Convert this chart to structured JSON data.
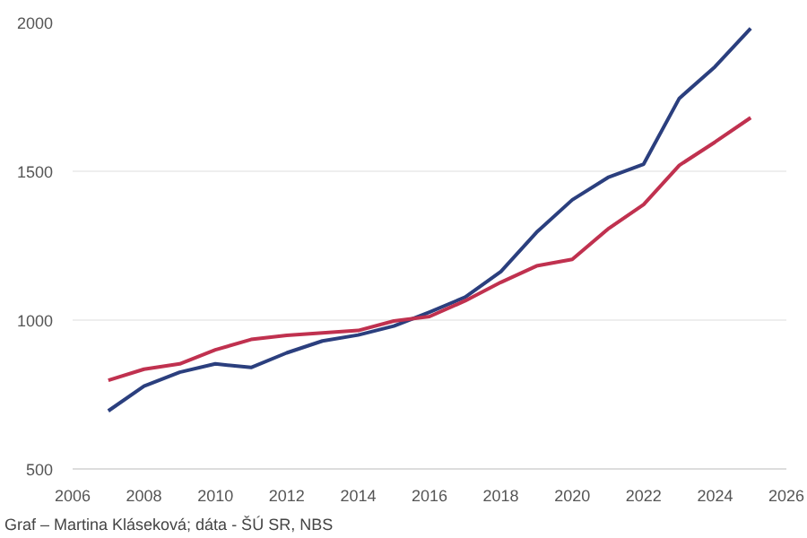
{
  "chart_data": {
    "type": "line",
    "x": [
      2007,
      2008,
      2009,
      2010,
      2011,
      2012,
      2013,
      2014,
      2015,
      2016,
      2017,
      2018,
      2019,
      2020,
      2021,
      2022,
      2023,
      2024,
      2025
    ],
    "series": [
      {
        "color": "#2b3f7e",
        "values": [
          695,
          778,
          825,
          853,
          841,
          890,
          930,
          950,
          980,
          1027,
          1077,
          1163,
          1295,
          1404,
          1479,
          1524,
          1745,
          1851,
          1980
        ]
      },
      {
        "color": "#c0314f",
        "values": [
          798,
          835,
          853,
          900,
          935,
          949,
          957,
          965,
          997,
          1012,
          1065,
          1127,
          1182,
          1204,
          1306,
          1388,
          1520,
          1598,
          1680
        ]
      }
    ],
    "xlim": [
      2006,
      2026
    ],
    "xticks": [
      2006,
      2008,
      2010,
      2012,
      2014,
      2016,
      2018,
      2020,
      2022,
      2024,
      2026
    ],
    "ylim": [
      500,
      2000
    ],
    "yticks": [
      500,
      1000,
      1500,
      2000
    ],
    "grid": "y",
    "marker": "none",
    "line_style": "solid",
    "annotations": [
      "Graf – Martina Kláseková; dáta - ŠÚ SR, NBS"
    ]
  }
}
